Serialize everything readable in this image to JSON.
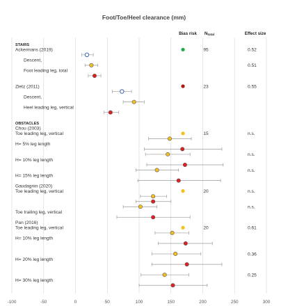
{
  "chart_data": {
    "type": "forest",
    "title": "Foot/Toe/Heel clearance (mm)",
    "columns": {
      "bias": "Bias risk",
      "n": "N",
      "n_sub": "total",
      "effect": "Effect size"
    },
    "x_ticks": [
      -100,
      -50,
      0,
      50,
      100,
      150,
      200,
      250,
      300
    ],
    "xlim": [
      -100,
      300
    ],
    "colors": {
      "blue": "#4a6fb5",
      "yellow": "#f4c020",
      "red": "#e02020",
      "green": "#22a84a",
      "darkred": "#b01818",
      "grid": "#d4d4d4",
      "whisker": "#9a9a9a"
    },
    "rows": [
      {
        "kind": "section",
        "text": "STAIRS"
      },
      {
        "kind": "study",
        "text": "Ackermans (2019)",
        "bias": "green",
        "n": "95",
        "effect": "0.52"
      },
      {
        "kind": "point",
        "mean": 18,
        "lo": 10,
        "hi": 28,
        "color": "blue"
      },
      {
        "kind": "label",
        "text": "Descent,",
        "indent": true
      },
      {
        "kind": "point",
        "mean": 25,
        "lo": 15,
        "hi": 35,
        "color": "yellow",
        "effect": "0.51"
      },
      {
        "kind": "label",
        "text": "Foot leading leg, total",
        "indent": true
      },
      {
        "kind": "point",
        "mean": 30,
        "lo": 20,
        "hi": 40,
        "color": "red"
      },
      {
        "kind": "gap"
      },
      {
        "kind": "study",
        "text": "Zietz (2011)",
        "bias": "darkred",
        "n": "23",
        "effect": "0.55"
      },
      {
        "kind": "point",
        "mean": 73,
        "lo": 58,
        "hi": 88,
        "color": "blue"
      },
      {
        "kind": "label",
        "text": "Descent,",
        "indent": true
      },
      {
        "kind": "point",
        "mean": 92,
        "lo": 75,
        "hi": 108,
        "color": "yellow"
      },
      {
        "kind": "label",
        "text": "Heel leading leg, vertical",
        "indent": true
      },
      {
        "kind": "point",
        "mean": 55,
        "lo": 45,
        "hi": 68,
        "color": "red"
      },
      {
        "kind": "gap"
      },
      {
        "kind": "section",
        "text": "OBSTACLES"
      },
      {
        "kind": "study",
        "text": "Chou (2003)"
      },
      {
        "kind": "label",
        "text": "Toe leading leg, vertical",
        "indent": false,
        "bias": "yellow",
        "n": "15",
        "effect": "n.s."
      },
      {
        "kind": "point",
        "mean": 148,
        "lo": 115,
        "hi": 182,
        "color": "yellow"
      },
      {
        "kind": "label",
        "text": "H= 5% leg length",
        "indent": false
      },
      {
        "kind": "point",
        "mean": 168,
        "lo": 108,
        "hi": 230,
        "color": "red"
      },
      {
        "kind": "point",
        "mean": 145,
        "lo": 110,
        "hi": 180,
        "color": "yellow",
        "effect": "n.s."
      },
      {
        "kind": "label",
        "text": "H= 10% leg length",
        "indent": false
      },
      {
        "kind": "point",
        "mean": 172,
        "lo": 112,
        "hi": 232,
        "color": "red"
      },
      {
        "kind": "point",
        "mean": 128,
        "lo": 95,
        "hi": 162,
        "color": "yellow",
        "effect": "n.s."
      },
      {
        "kind": "label",
        "text": "H= 15% leg length",
        "indent": false
      },
      {
        "kind": "point",
        "mean": 162,
        "lo": 98,
        "hi": 228,
        "color": "red"
      },
      {
        "kind": "study",
        "text": "Gaudagnin (2020)"
      },
      {
        "kind": "label",
        "text": "Toe leading leg, vertical",
        "indent": false,
        "bias": "yellow",
        "n": "20",
        "effect": "n.s."
      },
      {
        "kind": "point",
        "mean": 122,
        "lo": 102,
        "hi": 143,
        "color": "yellow"
      },
      {
        "kind": "point",
        "mean": 122,
        "lo": 95,
        "hi": 150,
        "color": "red"
      },
      {
        "kind": "point",
        "mean": 102,
        "lo": 75,
        "hi": 128,
        "color": "yellow",
        "effect": "n.s."
      },
      {
        "kind": "label",
        "text": "Toe trailing leg, vertical",
        "indent": false
      },
      {
        "kind": "point",
        "mean": 122,
        "lo": 65,
        "hi": 180,
        "color": "red"
      },
      {
        "kind": "study",
        "text": "Pan (2016)"
      },
      {
        "kind": "label",
        "text": "Toe leading leg, vertical",
        "indent": false,
        "bias": "yellow",
        "n": "20",
        "effect": "0.61"
      },
      {
        "kind": "point",
        "mean": 152,
        "lo": 125,
        "hi": 178,
        "color": "yellow"
      },
      {
        "kind": "label",
        "text": "H= 10% leg length",
        "indent": false
      },
      {
        "kind": "point",
        "mean": 173,
        "lo": 130,
        "hi": 215,
        "color": "red"
      },
      {
        "kind": "gap"
      },
      {
        "kind": "point",
        "mean": 157,
        "lo": 120,
        "hi": 197,
        "color": "yellow",
        "effect": "0.36"
      },
      {
        "kind": "label",
        "text": "H= 20% leg length",
        "indent": false
      },
      {
        "kind": "point",
        "mean": 175,
        "lo": 120,
        "hi": 230,
        "color": "red"
      },
      {
        "kind": "gap"
      },
      {
        "kind": "point",
        "mean": 140,
        "lo": 103,
        "hi": 178,
        "color": "yellow",
        "effect": "0.25"
      },
      {
        "kind": "label",
        "text": "H= 30% leg length",
        "indent": false
      },
      {
        "kind": "point",
        "mean": 153,
        "lo": 100,
        "hi": 207,
        "color": "red"
      }
    ]
  }
}
